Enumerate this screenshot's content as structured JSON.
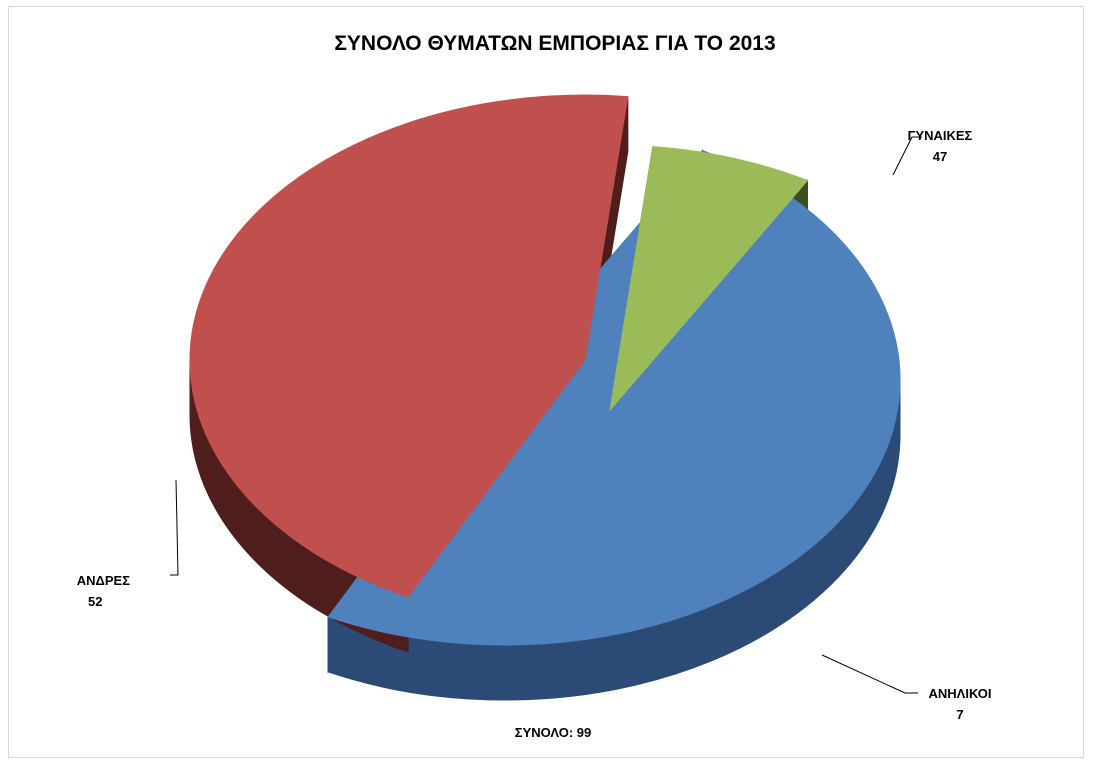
{
  "chart_data": {
    "type": "pie",
    "title": "ΣΥΝΟΛΟ ΘΥΜΑΤΩΝ ΕΜΠΟΡΙΑΣ  ΓΙΑ ΤΟ 2013",
    "three_d": true,
    "exploded": true,
    "categories": [
      "ΑΝΔΡΕΣ",
      "ΓΥΝΑΙΚΕΣ",
      "ΑΝΗΛΙΚΟΙ"
    ],
    "values": [
      52,
      47,
      7
    ],
    "colors": [
      "#4f81bd",
      "#c0504d",
      "#9bbb59"
    ],
    "side_colors": [
      "#2b4a75",
      "#4f1d1c",
      "#3d4d22"
    ],
    "data_labels": [
      {
        "name": "ΑΝΔΡΕΣ",
        "value": "52"
      },
      {
        "name": "ΓΥΝΑΙΚΕΣ",
        "value": "47"
      },
      {
        "name": "ΑΝΗΛΙΚΟΙ",
        "value": "7"
      }
    ],
    "total_label": "ΣΥΝΟΛΟ: 99"
  }
}
